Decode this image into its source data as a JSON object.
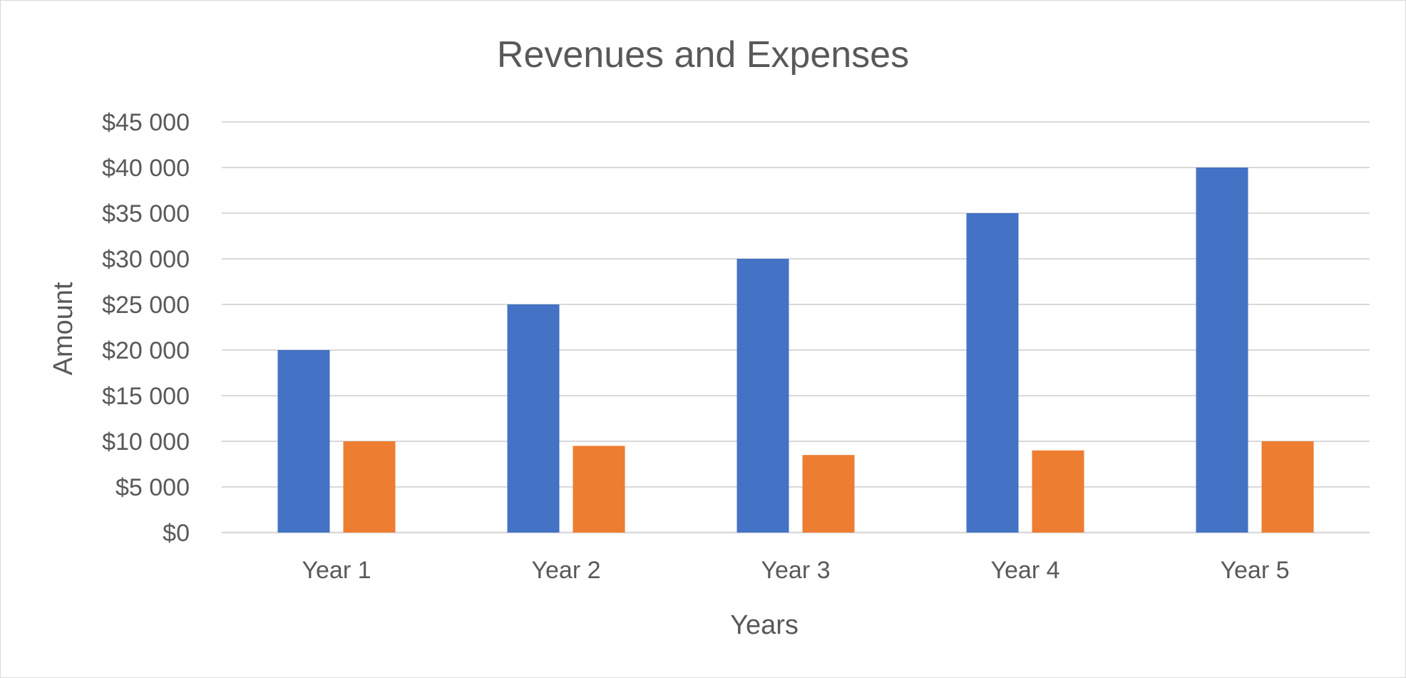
{
  "chart_data": {
    "type": "bar",
    "title": "Revenues and Expenses",
    "xlabel": "Years",
    "ylabel": "Amount",
    "categories": [
      "Year 1",
      "Year 2",
      "Year 3",
      "Year 4",
      "Year 5"
    ],
    "series": [
      {
        "values": [
          20000,
          25000,
          30000,
          35000,
          40000
        ],
        "color": "#4472C4"
      },
      {
        "values": [
          10000,
          9500,
          8500,
          9000,
          10000
        ],
        "color": "#ED7D31"
      }
    ],
    "ylim": [
      0,
      45000
    ],
    "yticks": [
      0,
      5000,
      10000,
      15000,
      20000,
      25000,
      30000,
      35000,
      40000,
      45000
    ],
    "ytick_labels": [
      "$0",
      "$5 000",
      "$10 000",
      "$15 000",
      "$20 000",
      "$25 000",
      "$30 000",
      "$35 000",
      "$40 000",
      "$45 000"
    ],
    "grid": true,
    "legend": "none"
  }
}
